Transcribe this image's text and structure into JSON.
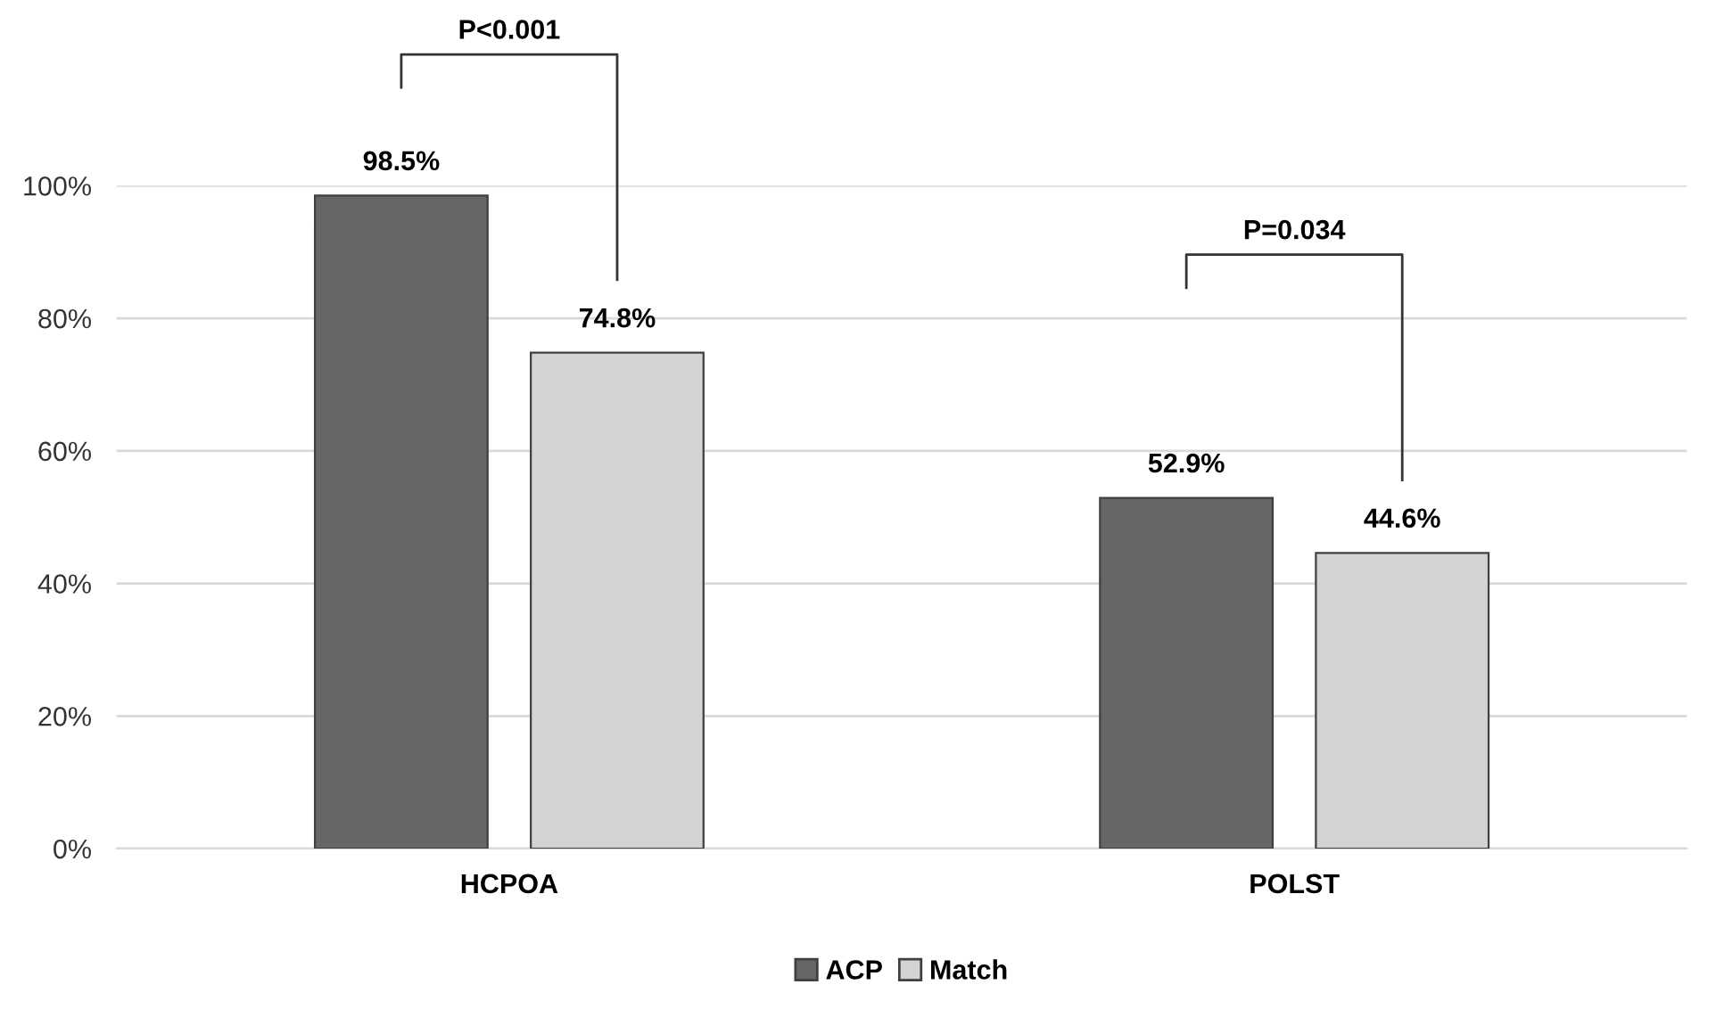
{
  "chart_data": {
    "type": "bar",
    "categories": [
      "HCPOA",
      "POLST"
    ],
    "series": [
      {
        "name": "ACP",
        "color": "#666666",
        "values": [
          98.5,
          52.9
        ],
        "value_labels": [
          "98.5%",
          "52.9%"
        ]
      },
      {
        "name": "Match",
        "color": "#d3d3d3",
        "values": [
          74.8,
          44.6
        ],
        "value_labels": [
          "74.8%",
          "44.6%"
        ]
      }
    ],
    "ylim": [
      0,
      100
    ],
    "yticks": [
      {
        "value": 0,
        "label": "0%"
      },
      {
        "value": 20,
        "label": "20%"
      },
      {
        "value": 40,
        "label": "40%"
      },
      {
        "value": 60,
        "label": "60%"
      },
      {
        "value": 80,
        "label": "80%"
      },
      {
        "value": 100,
        "label": "100%"
      }
    ],
    "grid": "y",
    "legend": "bottom",
    "annotations": [
      "P<0.001",
      "P=0.034"
    ]
  }
}
